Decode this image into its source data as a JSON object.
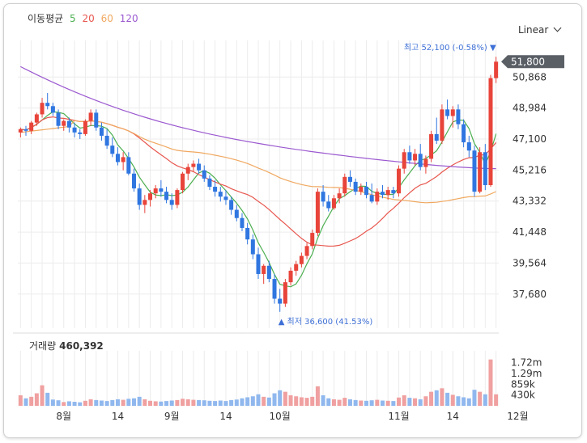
{
  "legend": {
    "title": "이동평균",
    "ma": [
      {
        "label": "5",
        "color": "#4caf50"
      },
      {
        "label": "20",
        "color": "#e8574f"
      },
      {
        "label": "60",
        "color": "#f0a860"
      },
      {
        "label": "120",
        "color": "#9b59d0"
      }
    ]
  },
  "scale_selector": {
    "label": "Linear"
  },
  "price_tag": {
    "value": "51,800",
    "bg": "#5a5f66"
  },
  "high_annotation": {
    "text": "최고 52,100 (-0.58%) ▼",
    "color": "#3d6fd6"
  },
  "low_annotation": {
    "text": "▲ 최저 36,600 (41.53%)",
    "color": "#3d6fd6"
  },
  "volume": {
    "label": "거래량",
    "value": "460,392"
  },
  "colors": {
    "up": "#e8443a",
    "down": "#2f76e0",
    "grid": "#ececec"
  },
  "chart_data": {
    "type": "candlestick",
    "price_axis": {
      "ticks": [
        "50,868",
        "48,984",
        "47,100",
        "45,216",
        "43,332",
        "41,448",
        "39,564",
        "37,680"
      ],
      "ylim": [
        36000,
        52600
      ]
    },
    "volume_axis": {
      "ticks": [
        "1.72m",
        "1.29m",
        "859k",
        "430k"
      ],
      "ylim": [
        0,
        2000000
      ]
    },
    "x_labels": [
      {
        "label": "8월",
        "index": 8
      },
      {
        "label": "14",
        "index": 18
      },
      {
        "label": "9월",
        "index": 28
      },
      {
        "label": "14",
        "index": 38
      },
      {
        "label": "10월",
        "index": 48
      },
      {
        "label": "11월",
        "index": 70
      },
      {
        "label": "14",
        "index": 80
      },
      {
        "label": "12월",
        "index": 92
      }
    ],
    "candles": [
      [
        47500,
        47800,
        47200,
        47700,
        420000
      ],
      [
        47700,
        47900,
        47300,
        47600,
        300000
      ],
      [
        47600,
        48200,
        47400,
        48100,
        360000
      ],
      [
        48100,
        48700,
        47900,
        48600,
        500000
      ],
      [
        48600,
        49600,
        48400,
        49300,
        820000
      ],
      [
        49300,
        49900,
        48900,
        49100,
        520000
      ],
      [
        49100,
        49300,
        48500,
        48700,
        250000
      ],
      [
        48700,
        48900,
        47700,
        47900,
        220000
      ],
      [
        47900,
        48300,
        47600,
        48200,
        150000
      ],
      [
        48200,
        48400,
        47500,
        47800,
        180000
      ],
      [
        47800,
        48100,
        47200,
        47500,
        160000
      ],
      [
        47500,
        47700,
        47100,
        47400,
        140000
      ],
      [
        47400,
        48300,
        47300,
        48200,
        200000
      ],
      [
        48200,
        48900,
        47900,
        48700,
        260000
      ],
      [
        48700,
        48900,
        47600,
        47800,
        230000
      ],
      [
        47800,
        48100,
        47000,
        47300,
        210000
      ],
      [
        47300,
        47700,
        46500,
        46700,
        190000
      ],
      [
        46700,
        47200,
        46000,
        46200,
        230000
      ],
      [
        46200,
        46600,
        45500,
        45700,
        260000
      ],
      [
        45700,
        46300,
        45200,
        46000,
        240000
      ],
      [
        46000,
        46300,
        44900,
        45000,
        280000
      ],
      [
        45000,
        45300,
        43900,
        44100,
        300000
      ],
      [
        44100,
        44400,
        42800,
        43100,
        360000
      ],
      [
        43100,
        43700,
        42600,
        43400,
        260000
      ],
      [
        43400,
        44000,
        43000,
        43800,
        200000
      ],
      [
        43800,
        44300,
        43500,
        44100,
        180000
      ],
      [
        44100,
        44600,
        43600,
        43900,
        170000
      ],
      [
        43900,
        44200,
        43200,
        43400,
        190000
      ],
      [
        43400,
        43800,
        42800,
        43100,
        210000
      ],
      [
        43100,
        44100,
        42900,
        44000,
        230000
      ],
      [
        44000,
        45100,
        43800,
        45000,
        280000
      ],
      [
        45000,
        45600,
        44600,
        45400,
        260000
      ],
      [
        45400,
        45800,
        45100,
        45600,
        240000
      ],
      [
        45600,
        45900,
        45000,
        45200,
        230000
      ],
      [
        45200,
        45500,
        44500,
        44700,
        220000
      ],
      [
        44700,
        44900,
        44000,
        44200,
        200000
      ],
      [
        44200,
        44600,
        43600,
        43900,
        190000
      ],
      [
        43900,
        44200,
        43300,
        43600,
        210000
      ],
      [
        43600,
        44000,
        43100,
        43400,
        190000
      ],
      [
        43400,
        43600,
        42500,
        42800,
        230000
      ],
      [
        42800,
        43100,
        42100,
        42300,
        250000
      ],
      [
        42300,
        42600,
        41500,
        41700,
        300000
      ],
      [
        41700,
        42000,
        40700,
        41000,
        340000
      ],
      [
        41000,
        41300,
        39800,
        40100,
        380000
      ],
      [
        40100,
        40500,
        38600,
        38900,
        460000
      ],
      [
        38900,
        39500,
        38300,
        39400,
        360000
      ],
      [
        39400,
        39700,
        38400,
        38600,
        330000
      ],
      [
        38600,
        38900,
        37100,
        37400,
        500000
      ],
      [
        37400,
        38000,
        36600,
        37100,
        620000
      ],
      [
        37100,
        38600,
        36900,
        38400,
        560000
      ],
      [
        38400,
        39300,
        38200,
        39100,
        420000
      ],
      [
        39100,
        39700,
        38800,
        39500,
        380000
      ],
      [
        39500,
        40200,
        39300,
        40000,
        340000
      ],
      [
        40000,
        40800,
        39800,
        40600,
        320000
      ],
      [
        40600,
        41600,
        40400,
        41400,
        360000
      ],
      [
        41400,
        44100,
        41200,
        43900,
        780000
      ],
      [
        43900,
        44300,
        43000,
        43300,
        420000
      ],
      [
        43300,
        43700,
        42700,
        42900,
        300000
      ],
      [
        42900,
        43700,
        42800,
        43500,
        260000
      ],
      [
        43500,
        44100,
        43200,
        43800,
        240000
      ],
      [
        43800,
        45000,
        43600,
        44800,
        320000
      ],
      [
        44800,
        45200,
        44200,
        44500,
        260000
      ],
      [
        44500,
        44700,
        43700,
        43900,
        230000
      ],
      [
        43900,
        44400,
        43700,
        44200,
        210000
      ],
      [
        44200,
        44500,
        43500,
        43700,
        200000
      ],
      [
        43700,
        44400,
        43200,
        43300,
        220000
      ],
      [
        43300,
        44100,
        43100,
        43900,
        240000
      ],
      [
        43900,
        44300,
        43500,
        43700,
        210000
      ],
      [
        43700,
        44200,
        43400,
        44000,
        200000
      ],
      [
        44000,
        44200,
        43500,
        43800,
        190000
      ],
      [
        43800,
        45500,
        43600,
        45300,
        330000
      ],
      [
        45300,
        46500,
        45000,
        46300,
        420000
      ],
      [
        46300,
        46700,
        45600,
        45800,
        320000
      ],
      [
        45800,
        46500,
        45500,
        46200,
        300000
      ],
      [
        46200,
        46800,
        45200,
        45400,
        260000
      ],
      [
        45400,
        46100,
        45000,
        45900,
        380000
      ],
      [
        45900,
        47600,
        45700,
        47400,
        560000
      ],
      [
        47400,
        48400,
        46800,
        47000,
        620000
      ],
      [
        47000,
        49200,
        46800,
        48900,
        700000
      ],
      [
        48900,
        49500,
        48300,
        48500,
        520000
      ],
      [
        48500,
        49100,
        47800,
        48900,
        440000
      ],
      [
        48900,
        49200,
        47700,
        48000,
        380000
      ],
      [
        48000,
        48300,
        46600,
        46900,
        340000
      ],
      [
        46900,
        47300,
        46000,
        46400,
        300000
      ],
      [
        46400,
        46700,
        43600,
        43900,
        640000
      ],
      [
        43900,
        46600,
        43800,
        46300,
        560000
      ],
      [
        46300,
        46800,
        44000,
        44300,
        460000
      ],
      [
        44300,
        51000,
        44200,
        50800,
        1850000
      ],
      [
        50800,
        52100,
        50500,
        51800,
        460392
      ]
    ]
  }
}
